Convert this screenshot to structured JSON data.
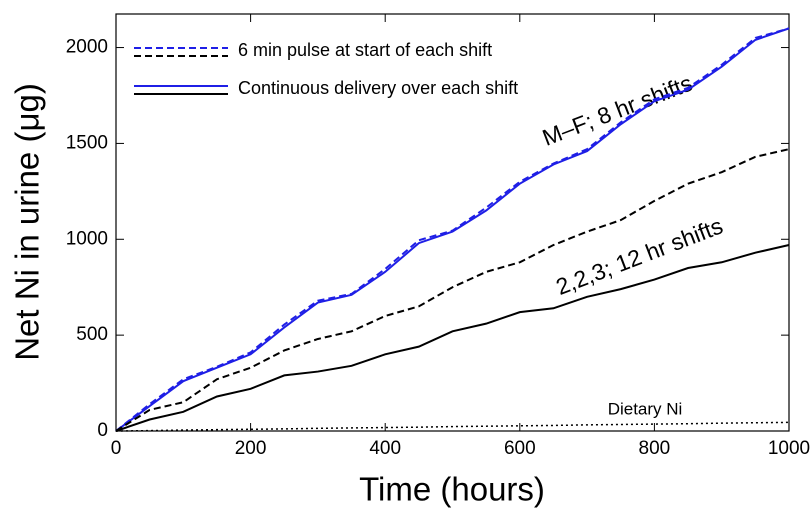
{
  "chart_data": {
    "type": "line",
    "x_label": "Time (hours)",
    "y_label": "Net Ni in urine (μg)",
    "x": [
      0,
      50,
      100,
      150,
      200,
      250,
      300,
      350,
      400,
      450,
      500,
      550,
      600,
      650,
      700,
      750,
      800,
      850,
      900,
      950,
      1000
    ],
    "series": [
      {
        "color": "#1f1fe6",
        "dash": true,
        "values": [
          0,
          140,
          270,
          335,
          410,
          555,
          680,
          715,
          845,
          995,
          1045,
          1165,
          1300,
          1395,
          1470,
          1610,
          1730,
          1790,
          1910,
          2050,
          2100
        ]
      },
      {
        "color": "#1f1fe6",
        "dash": false,
        "values": [
          0,
          130,
          260,
          330,
          400,
          540,
          670,
          710,
          830,
          980,
          1040,
          1150,
          1290,
          1390,
          1460,
          1600,
          1720,
          1780,
          1900,
          2040,
          2100
        ]
      },
      {
        "color": "#000000",
        "dash": true,
        "values": [
          0,
          110,
          150,
          270,
          330,
          420,
          480,
          520,
          600,
          650,
          750,
          830,
          880,
          970,
          1040,
          1100,
          1200,
          1290,
          1350,
          1430,
          1470
        ]
      },
      {
        "color": "#000000",
        "dash": false,
        "values": [
          0,
          60,
          100,
          180,
          220,
          290,
          310,
          340,
          400,
          440,
          520,
          560,
          620,
          640,
          700,
          740,
          790,
          850,
          880,
          930,
          970
        ]
      },
      {
        "color": "#000000",
        "dotted": true,
        "values": [
          0,
          2,
          5,
          7,
          9,
          11,
          14,
          16,
          18,
          20,
          23,
          25,
          27,
          29,
          32,
          34,
          36,
          38,
          41,
          43,
          45
        ]
      }
    ],
    "legend": [
      {
        "label": "6 min pulse at start of each shift",
        "dash": true
      },
      {
        "label": "Continuous delivery over each shift",
        "dash": false
      }
    ],
    "annotations": [
      "M–F; 8 hr shifts",
      "2,2,3; 12 hr shifts",
      "Dietary Ni"
    ],
    "xlim": [
      0,
      1000
    ],
    "ylim": [
      0,
      2175
    ],
    "xticks": [
      0,
      200,
      400,
      600,
      800,
      1000
    ],
    "yticks": [
      0,
      500,
      1000,
      1500,
      2000
    ]
  }
}
